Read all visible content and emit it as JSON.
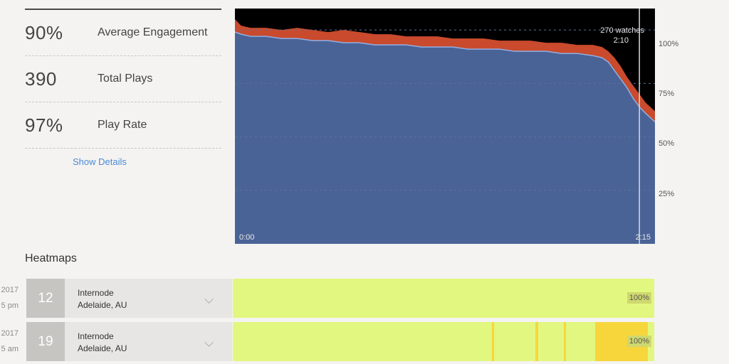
{
  "stats": [
    {
      "value": "90%",
      "label": "Average Engagement"
    },
    {
      "value": "390",
      "label": "Total Plays"
    },
    {
      "value": "97%",
      "label": "Play Rate"
    }
  ],
  "show_details_label": "Show Details",
  "chart_data": {
    "type": "area",
    "x_unit": "seconds",
    "x_start_label": "0:00",
    "x_end_label": "2:15",
    "x_range": [
      0,
      135
    ],
    "ylim": [
      0,
      110
    ],
    "y_ticks": [
      "100%",
      "75%",
      "50%",
      "25%"
    ],
    "y_tick_values": [
      100,
      75,
      50,
      25
    ],
    "cursor": {
      "time_label": "2:10",
      "watches_label": "270 watches",
      "x": 130
    },
    "series": [
      {
        "color": "#c94a2c",
        "x": [
          0,
          2,
          5,
          10,
          15,
          20,
          25,
          30,
          35,
          40,
          45,
          50,
          55,
          60,
          65,
          70,
          75,
          80,
          85,
          90,
          95,
          100,
          105,
          110,
          115,
          118,
          120,
          122,
          124,
          126,
          128,
          130,
          132,
          135
        ],
        "values": [
          105,
          102,
          101,
          101,
          100,
          101,
          100,
          99,
          100,
          99,
          98,
          98,
          97,
          97,
          97,
          96,
          96,
          96,
          95,
          95,
          95,
          94,
          94,
          93,
          93,
          92,
          90,
          87,
          83,
          78,
          74,
          70,
          66,
          62
        ]
      },
      {
        "color": "#4a6396",
        "x": [
          0,
          2,
          5,
          10,
          15,
          20,
          25,
          30,
          35,
          40,
          45,
          50,
          55,
          60,
          65,
          70,
          75,
          80,
          85,
          90,
          95,
          100,
          105,
          110,
          115,
          118,
          120,
          122,
          124,
          126,
          128,
          130,
          132,
          135
        ],
        "values": [
          99,
          98,
          97,
          97,
          96,
          96,
          95,
          95,
          94,
          94,
          93,
          93,
          93,
          92,
          92,
          92,
          91,
          91,
          91,
          90,
          90,
          90,
          89,
          89,
          88,
          87,
          85,
          81,
          77,
          73,
          68,
          64,
          61,
          57
        ]
      }
    ]
  },
  "heatmaps": {
    "title": "Heatmaps",
    "rows": [
      {
        "date_line1": "2017",
        "date_line2": "5 pm",
        "number": "12",
        "isp": "Internode",
        "location": "Adelaide, AU",
        "percent": "100%",
        "segments": []
      },
      {
        "date_line1": "2017",
        "date_line2": "5 am",
        "number": "19",
        "isp": "Internode",
        "location": "Adelaide, AU",
        "percent": "100%",
        "segments": [
          {
            "start": 0.615,
            "end": 0.62
          },
          {
            "start": 0.718,
            "end": 0.724
          },
          {
            "start": 0.785,
            "end": 0.79
          },
          {
            "start": 0.86,
            "end": 0.985
          }
        ]
      }
    ]
  },
  "colors": {
    "chart_bg": "#000000",
    "rewatch_area": "#c94a2c",
    "engagement_area": "#4a6396",
    "engagement_line": "#8fb0e6",
    "heatmap_base": "#e2f77f",
    "heatmap_hot": "#f7d63c",
    "link": "#4a8bd4"
  }
}
